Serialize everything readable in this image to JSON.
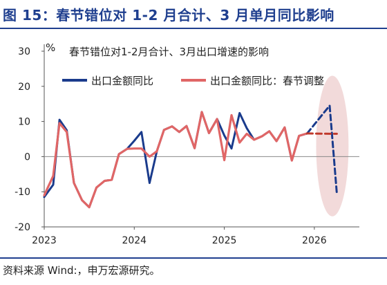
{
  "figure": {
    "title": "图 15：春节错位对 1-2 月合计、3 月单月同比影响",
    "source": "资料来源 Wind:，申万宏源研究。"
  },
  "chart_data": {
    "type": "line",
    "title": "春节错位对1-2月合计、3月出口增速的影响",
    "ylabel": "%",
    "ylim": [
      -20,
      30
    ],
    "yticks": [
      30,
      20,
      10,
      0,
      -10,
      -20
    ],
    "xlim": [
      2023.0,
      2026.5
    ],
    "xticks": [
      2023,
      2024,
      2025,
      2026
    ],
    "grid": false,
    "legend_position": "top",
    "highlight_ellipse": {
      "center_x": 2026.2,
      "center_y": 3,
      "x_radius": 0.18,
      "y_radius": 20,
      "color": "#f2dada"
    },
    "series": [
      {
        "name": "出口金额同比",
        "color": "#1a3b8c",
        "style": "solid",
        "points": [
          [
            2023.0,
            -11.5
          ],
          [
            2023.1,
            -8
          ],
          [
            2023.17,
            10.5
          ],
          [
            2023.25,
            7.5
          ],
          [
            2023.33,
            -7.5
          ],
          [
            2023.42,
            -12.4
          ],
          [
            2023.5,
            -14.4
          ],
          [
            2023.58,
            -8.8
          ],
          [
            2023.67,
            -6.9
          ],
          [
            2023.75,
            -6.6
          ],
          [
            2023.83,
            0.7
          ],
          [
            2023.92,
            2.2
          ],
          [
            2024.0,
            4.5
          ],
          [
            2024.08,
            7.0
          ],
          [
            2024.17,
            -7.5
          ],
          [
            2024.25,
            1.5
          ],
          [
            2024.33,
            7.6
          ],
          [
            2024.42,
            8.6
          ],
          [
            2024.5,
            7.0
          ],
          [
            2024.58,
            8.7
          ],
          [
            2024.67,
            2.4
          ],
          [
            2024.75,
            12.7
          ],
          [
            2024.83,
            6.7
          ],
          [
            2024.92,
            10.7
          ],
          [
            2025.0,
            6.0
          ],
          [
            2025.08,
            2.3
          ],
          [
            2025.17,
            12.4
          ],
          [
            2025.25,
            8.1
          ],
          [
            2025.33,
            4.8
          ],
          [
            2025.42,
            5.8
          ],
          [
            2025.5,
            7.2
          ],
          [
            2025.58,
            4.4
          ],
          [
            2025.67,
            8.3
          ],
          [
            2025.75,
            -1.1
          ],
          [
            2025.83,
            5.9
          ],
          [
            2025.92,
            6.6
          ]
        ]
      },
      {
        "name": "出口金额同比：春节调整",
        "color": "#e06666",
        "style": "solid",
        "points": [
          [
            2023.0,
            -11
          ],
          [
            2023.1,
            -5.5
          ],
          [
            2023.17,
            9.5
          ],
          [
            2023.25,
            7.0
          ],
          [
            2023.33,
            -7.5
          ],
          [
            2023.42,
            -12.4
          ],
          [
            2023.5,
            -14.4
          ],
          [
            2023.58,
            -8.8
          ],
          [
            2023.67,
            -6.9
          ],
          [
            2023.75,
            -6.6
          ],
          [
            2023.83,
            0.7
          ],
          [
            2023.92,
            2.2
          ],
          [
            2024.0,
            2.3
          ],
          [
            2024.08,
            2.3
          ],
          [
            2024.17,
            0.0
          ],
          [
            2024.25,
            1.5
          ],
          [
            2024.33,
            7.6
          ],
          [
            2024.42,
            8.6
          ],
          [
            2024.5,
            7.0
          ],
          [
            2024.58,
            8.7
          ],
          [
            2024.67,
            2.4
          ],
          [
            2024.75,
            12.7
          ],
          [
            2024.83,
            6.7
          ],
          [
            2024.92,
            10.7
          ],
          [
            2025.0,
            -1.0
          ],
          [
            2025.08,
            11.8
          ],
          [
            2025.17,
            4.0
          ],
          [
            2025.25,
            6.5
          ],
          [
            2025.33,
            4.8
          ],
          [
            2025.42,
            5.8
          ],
          [
            2025.5,
            7.2
          ],
          [
            2025.58,
            4.4
          ],
          [
            2025.67,
            8.3
          ],
          [
            2025.75,
            -1.1
          ],
          [
            2025.83,
            5.9
          ],
          [
            2025.92,
            6.6
          ]
        ]
      }
    ],
    "forecast": [
      {
        "series": "出口金额同比",
        "color": "#1a3b8c",
        "style": "dashed",
        "points": [
          [
            2025.92,
            6.6
          ],
          [
            2026.17,
            14.5
          ],
          [
            2026.25,
            -10.5
          ]
        ]
      },
      {
        "series": "出口金额同比：春节调整",
        "color": "#c0392b",
        "style": "dashed",
        "points": [
          [
            2025.92,
            6.6
          ],
          [
            2026.17,
            6.5
          ],
          [
            2026.25,
            6.5
          ]
        ]
      }
    ]
  }
}
